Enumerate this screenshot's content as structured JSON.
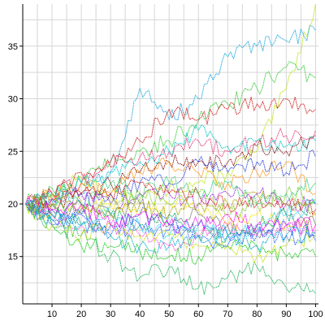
{
  "chart_data": {
    "type": "line",
    "title": "",
    "xlabel": "",
    "ylabel": "",
    "xlim": [
      0,
      101
    ],
    "ylim": [
      10.5,
      39
    ],
    "x_ticks": [
      10,
      20,
      30,
      40,
      50,
      60,
      70,
      80,
      90,
      100
    ],
    "x_tick_labels": [
      "10",
      "20",
      "30",
      "40",
      "50",
      "60",
      "70",
      "80",
      "90",
      "100"
    ],
    "y_ticks": [
      15,
      20,
      25,
      30,
      35
    ],
    "y_tick_labels": [
      "15",
      "20",
      "25",
      "30",
      "35"
    ],
    "x_minor_step": 5,
    "y_minor_step": 2.5,
    "grid": true,
    "legend": "none",
    "line_style": "dotted",
    "series": [
      {
        "color": "#b8e600",
        "values": [
          [
            1,
            20
          ],
          [
            10,
            20.8
          ],
          [
            20,
            22.5
          ],
          [
            30,
            21
          ],
          [
            40,
            20.5
          ],
          [
            50,
            21.5
          ],
          [
            60,
            22
          ],
          [
            70,
            23
          ],
          [
            80,
            25
          ],
          [
            90,
            31
          ],
          [
            100,
            39
          ]
        ]
      },
      {
        "color": "#1aa7e0",
        "values": [
          [
            1,
            20
          ],
          [
            10,
            20.3
          ],
          [
            20,
            21
          ],
          [
            30,
            23
          ],
          [
            40,
            31
          ],
          [
            50,
            28
          ],
          [
            60,
            30
          ],
          [
            70,
            34
          ],
          [
            80,
            35
          ],
          [
            90,
            35.5
          ],
          [
            100,
            36.5
          ]
        ]
      },
      {
        "color": "#39c93a",
        "values": [
          [
            1,
            20
          ],
          [
            10,
            21.5
          ],
          [
            20,
            22
          ],
          [
            30,
            24
          ],
          [
            40,
            25
          ],
          [
            50,
            26
          ],
          [
            60,
            28
          ],
          [
            70,
            29.5
          ],
          [
            80,
            31
          ],
          [
            90,
            33
          ],
          [
            100,
            32
          ]
        ]
      },
      {
        "color": "#d21f1f",
        "values": [
          [
            1,
            20
          ],
          [
            10,
            21
          ],
          [
            20,
            23
          ],
          [
            30,
            23.5
          ],
          [
            40,
            26
          ],
          [
            50,
            29
          ],
          [
            60,
            28
          ],
          [
            70,
            29
          ],
          [
            80,
            29.5
          ],
          [
            90,
            30
          ],
          [
            100,
            29
          ]
        ]
      },
      {
        "color": "#e23b7a",
        "values": [
          [
            1,
            20
          ],
          [
            10,
            21
          ],
          [
            20,
            22
          ],
          [
            30,
            24
          ],
          [
            40,
            24.5
          ],
          [
            50,
            25
          ],
          [
            60,
            26
          ],
          [
            70,
            25
          ],
          [
            80,
            26
          ],
          [
            90,
            26.5
          ],
          [
            100,
            27
          ]
        ]
      },
      {
        "color": "#00c8c8",
        "values": [
          [
            1,
            20
          ],
          [
            10,
            20.5
          ],
          [
            20,
            22
          ],
          [
            30,
            23
          ],
          [
            40,
            24
          ],
          [
            50,
            25
          ],
          [
            60,
            27
          ],
          [
            70,
            25.5
          ],
          [
            80,
            26
          ],
          [
            90,
            25.5
          ],
          [
            100,
            26
          ]
        ]
      },
      {
        "color": "#8a1a1a",
        "values": [
          [
            1,
            20
          ],
          [
            10,
            20
          ],
          [
            20,
            21
          ],
          [
            30,
            22
          ],
          [
            40,
            23
          ],
          [
            50,
            24
          ],
          [
            60,
            24
          ],
          [
            70,
            24
          ],
          [
            80,
            25.5
          ],
          [
            90,
            25
          ],
          [
            100,
            26.5
          ]
        ]
      },
      {
        "color": "#ff8c00",
        "values": [
          [
            1,
            20
          ],
          [
            10,
            21
          ],
          [
            20,
            22
          ],
          [
            30,
            21
          ],
          [
            40,
            23
          ],
          [
            50,
            24
          ],
          [
            60,
            23
          ],
          [
            70,
            22
          ],
          [
            80,
            23
          ],
          [
            90,
            24
          ],
          [
            100,
            21
          ]
        ]
      },
      {
        "color": "#2a3fe0",
        "values": [
          [
            1,
            20
          ],
          [
            10,
            19.5
          ],
          [
            20,
            20
          ],
          [
            30,
            21
          ],
          [
            40,
            22
          ],
          [
            50,
            22
          ],
          [
            60,
            24
          ],
          [
            70,
            23
          ],
          [
            80,
            24
          ],
          [
            90,
            23
          ],
          [
            100,
            24.5
          ]
        ]
      },
      {
        "color": "#9b2bd6",
        "values": [
          [
            1,
            20
          ],
          [
            10,
            20.5
          ],
          [
            20,
            21
          ],
          [
            30,
            20
          ],
          [
            40,
            21
          ],
          [
            50,
            21
          ],
          [
            60,
            20
          ],
          [
            70,
            21
          ],
          [
            80,
            21
          ],
          [
            90,
            20
          ],
          [
            100,
            20
          ]
        ]
      },
      {
        "color": "#ffe000",
        "values": [
          [
            1,
            20
          ],
          [
            10,
            19
          ],
          [
            20,
            20
          ],
          [
            30,
            20
          ],
          [
            40,
            19
          ],
          [
            50,
            20
          ],
          [
            60,
            19.5
          ],
          [
            70,
            18
          ],
          [
            80,
            19
          ],
          [
            90,
            18
          ],
          [
            100,
            19
          ]
        ]
      },
      {
        "color": "#7ad020",
        "values": [
          [
            1,
            20
          ],
          [
            10,
            20
          ],
          [
            20,
            19
          ],
          [
            30,
            20
          ],
          [
            40,
            21
          ],
          [
            50,
            20
          ],
          [
            60,
            21
          ],
          [
            70,
            19
          ],
          [
            80,
            20
          ],
          [
            90,
            21
          ],
          [
            100,
            20.5
          ]
        ]
      },
      {
        "color": "#6a6a6a",
        "values": [
          [
            1,
            20
          ],
          [
            10,
            19
          ],
          [
            20,
            19.5
          ],
          [
            30,
            19
          ],
          [
            40,
            20
          ],
          [
            50,
            18
          ],
          [
            60,
            19
          ],
          [
            70,
            18
          ],
          [
            80,
            17
          ],
          [
            90,
            19
          ],
          [
            100,
            18
          ]
        ]
      },
      {
        "color": "#00a86b",
        "values": [
          [
            1,
            20
          ],
          [
            10,
            19
          ],
          [
            20,
            18
          ],
          [
            30,
            19
          ],
          [
            40,
            18
          ],
          [
            50,
            19
          ],
          [
            60,
            17
          ],
          [
            70,
            17
          ],
          [
            80,
            18
          ],
          [
            90,
            19
          ],
          [
            100,
            20
          ]
        ]
      },
      {
        "color": "#3b5cff",
        "values": [
          [
            1,
            20
          ],
          [
            10,
            18.5
          ],
          [
            20,
            19
          ],
          [
            30,
            18
          ],
          [
            40,
            19
          ],
          [
            50,
            18
          ],
          [
            60,
            18
          ],
          [
            70,
            17
          ],
          [
            80,
            17.5
          ],
          [
            90,
            18
          ],
          [
            100,
            17
          ]
        ]
      },
      {
        "color": "#ff4fd8",
        "values": [
          [
            1,
            20
          ],
          [
            10,
            19
          ],
          [
            20,
            18
          ],
          [
            30,
            18
          ],
          [
            40,
            17
          ],
          [
            50,
            16
          ],
          [
            60,
            17
          ],
          [
            70,
            18
          ],
          [
            80,
            17
          ],
          [
            90,
            18
          ],
          [
            100,
            17.5
          ]
        ]
      },
      {
        "color": "#14c814",
        "values": [
          [
            1,
            20
          ],
          [
            10,
            18
          ],
          [
            20,
            16
          ],
          [
            30,
            16
          ],
          [
            40,
            15.5
          ],
          [
            50,
            15
          ],
          [
            60,
            15
          ],
          [
            70,
            16
          ],
          [
            80,
            16
          ],
          [
            90,
            15
          ],
          [
            100,
            15
          ]
        ]
      },
      {
        "color": "#23b45a",
        "values": [
          [
            1,
            20
          ],
          [
            10,
            18
          ],
          [
            20,
            17
          ],
          [
            30,
            15
          ],
          [
            40,
            13
          ],
          [
            50,
            14
          ],
          [
            60,
            12
          ],
          [
            70,
            13
          ],
          [
            80,
            14
          ],
          [
            90,
            12
          ],
          [
            100,
            11.5
          ]
        ]
      },
      {
        "color": "#c0e000",
        "values": [
          [
            1,
            20
          ],
          [
            10,
            18
          ],
          [
            20,
            17
          ],
          [
            30,
            18
          ],
          [
            40,
            17
          ],
          [
            50,
            17
          ],
          [
            60,
            16
          ],
          [
            70,
            16
          ],
          [
            80,
            15
          ],
          [
            90,
            16
          ],
          [
            100,
            17
          ]
        ]
      },
      {
        "color": "#e02020",
        "values": [
          [
            1,
            20
          ],
          [
            10,
            20.5
          ],
          [
            20,
            21
          ],
          [
            30,
            21
          ],
          [
            40,
            22
          ],
          [
            50,
            21
          ],
          [
            60,
            21
          ],
          [
            70,
            20
          ],
          [
            80,
            20
          ],
          [
            90,
            20
          ],
          [
            100,
            19.5
          ]
        ]
      },
      {
        "color": "#22d3ee",
        "values": [
          [
            1,
            20
          ],
          [
            10,
            19
          ],
          [
            20,
            18
          ],
          [
            30,
            19
          ],
          [
            40,
            18
          ],
          [
            50,
            17
          ],
          [
            60,
            18
          ],
          [
            70,
            17
          ],
          [
            80,
            18
          ],
          [
            90,
            19
          ],
          [
            100,
            20
          ]
        ]
      },
      {
        "color": "#a0a000",
        "values": [
          [
            1,
            20
          ],
          [
            10,
            20
          ],
          [
            20,
            20
          ],
          [
            30,
            19
          ],
          [
            40,
            20
          ],
          [
            50,
            19
          ],
          [
            60,
            20
          ],
          [
            70,
            20
          ],
          [
            80,
            21
          ],
          [
            90,
            20
          ],
          [
            100,
            19
          ]
        ]
      },
      {
        "color": "#2ecc71",
        "values": [
          [
            1,
            20
          ],
          [
            10,
            21
          ],
          [
            20,
            20
          ],
          [
            30,
            22
          ],
          [
            40,
            21
          ],
          [
            50,
            22
          ],
          [
            60,
            21
          ],
          [
            70,
            22
          ],
          [
            80,
            20
          ],
          [
            90,
            21
          ],
          [
            100,
            22
          ]
        ]
      },
      {
        "color": "#ff00ff",
        "values": [
          [
            1,
            20
          ],
          [
            10,
            19.5
          ],
          [
            20,
            20
          ],
          [
            30,
            18
          ],
          [
            40,
            19
          ],
          [
            50,
            18
          ],
          [
            60,
            18
          ],
          [
            70,
            19
          ],
          [
            80,
            18
          ],
          [
            90,
            18
          ],
          [
            100,
            18
          ]
        ]
      },
      {
        "color": "#2f6bff",
        "values": [
          [
            1,
            20
          ],
          [
            10,
            18
          ],
          [
            20,
            19
          ],
          [
            30,
            17
          ],
          [
            40,
            18
          ],
          [
            50,
            17.5
          ],
          [
            60,
            17
          ],
          [
            70,
            16
          ],
          [
            80,
            17
          ],
          [
            90,
            17
          ],
          [
            100,
            16.5
          ]
        ]
      },
      {
        "color": "#00aacc",
        "values": [
          [
            1,
            20
          ],
          [
            10,
            18.5
          ],
          [
            20,
            18
          ],
          [
            30,
            17
          ],
          [
            40,
            16
          ],
          [
            50,
            16
          ],
          [
            60,
            17
          ],
          [
            70,
            17
          ],
          [
            80,
            16
          ],
          [
            90,
            17
          ],
          [
            100,
            17.2
          ]
        ]
      }
    ]
  }
}
